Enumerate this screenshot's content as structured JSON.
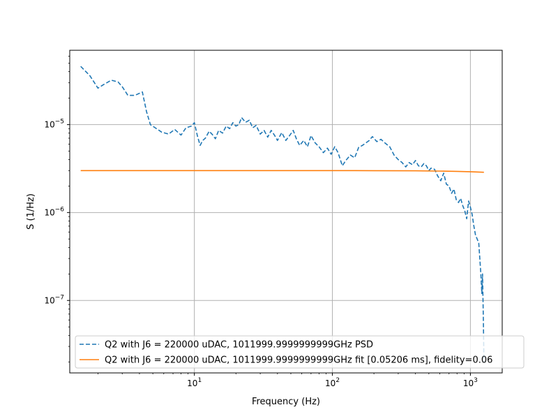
{
  "chart_data": {
    "type": "line",
    "title": "",
    "xlabel": "Frequency (Hz)",
    "ylabel": "S (1/Hz)",
    "xscale": "log",
    "yscale": "log",
    "xlim": [
      1.25,
      1700
    ],
    "ylim": [
      1.5e-08,
      7e-05
    ],
    "grid": true,
    "legend_position": "lower-left",
    "x_ticks": [
      {
        "value": 10,
        "label_base": "10",
        "label_exp": "1"
      },
      {
        "value": 100,
        "label_base": "10",
        "label_exp": "2"
      },
      {
        "value": 1000,
        "label_base": "10",
        "label_exp": "3"
      }
    ],
    "y_ticks": [
      {
        "value": 1e-07,
        "label_base": "10",
        "label_exp": "−7"
      },
      {
        "value": 1e-06,
        "label_base": "10",
        "label_exp": "−6"
      },
      {
        "value": 1e-05,
        "label_base": "10",
        "label_exp": "−5"
      }
    ],
    "series": [
      {
        "name": "Q2 with J6 = 220000 uDAC, 1011999.9999999999GHz PSD",
        "color": "#1f77b4",
        "style": "dashed",
        "x": [
          1.5,
          1.75,
          2.0,
          2.2,
          2.5,
          2.8,
          3.0,
          3.3,
          3.7,
          4.2,
          4.5,
          4.8,
          5.2,
          5.8,
          6.5,
          7.2,
          8.0,
          8.7,
          9.5,
          10.0,
          10.5,
          11.0,
          11.5,
          12.0,
          12.8,
          13.5,
          14.2,
          15.0,
          16.0,
          17.0,
          18.0,
          19.0,
          20.0,
          21.0,
          22.0,
          23.5,
          25.0,
          26.5,
          28.0,
          30.0,
          32.0,
          34.0,
          36.0,
          38.0,
          40.0,
          43.0,
          46.0,
          49.0,
          52.0,
          55.0,
          58.0,
          62.0,
          66.0,
          70.0,
          75.0,
          80.0,
          86.0,
          92.0,
          98.0,
          104.0,
          110.0,
          118.0,
          125.0,
          135.0,
          145.0,
          155.0,
          165.0,
          175.0,
          185.0,
          195.0,
          210.0,
          225.0,
          240.0,
          260.0,
          280.0,
          300.0,
          320.0,
          340.0,
          360.0,
          380.0,
          400.0,
          420.0,
          440.0,
          460.0,
          480.0,
          500.0,
          520.0,
          550.0,
          580.0,
          610.0,
          640.0,
          670.0,
          700.0,
          730.0,
          760.0,
          790.0,
          820.0,
          850.0,
          880.0,
          910.0,
          940.0,
          970.0,
          1000.0,
          1030.0,
          1060.0,
          1090.0,
          1120.0,
          1150.0,
          1170.0,
          1190.0,
          1210.0,
          1225.0,
          1235.0,
          1242.0,
          1248.0,
          1253.0
        ],
        "y": [
          4.6e-05,
          3.6e-05,
          2.6e-05,
          2.85e-05,
          3.2e-05,
          3.05e-05,
          2.7e-05,
          2.15e-05,
          2.15e-05,
          2.35e-05,
          1.4e-05,
          1e-05,
          9.2e-06,
          8.2e-06,
          7.8e-06,
          8.8e-06,
          7.6e-06,
          9.2e-06,
          9.6e-06,
          1.05e-05,
          7.5e-06,
          5.8e-06,
          6.6e-06,
          7e-06,
          8.4e-06,
          7.7e-06,
          6.9e-06,
          8.6e-06,
          8e-06,
          9.6e-06,
          9e-06,
          1.05e-05,
          9.6e-06,
          1e-05,
          1.2e-05,
          1.06e-05,
          1.12e-05,
          9.2e-06,
          9.8e-06,
          7.8e-06,
          8.6e-06,
          7.2e-06,
          8.6e-06,
          7.6e-06,
          6.6e-06,
          8.1e-06,
          6.6e-06,
          7.5e-06,
          8.6e-06,
          6.8e-06,
          5.8e-06,
          6.6e-06,
          5.6e-06,
          7.5e-06,
          6.2e-06,
          5.6e-06,
          4.8e-06,
          5.4e-06,
          4.6e-06,
          5.6e-06,
          4.8e-06,
          3.4e-06,
          3.9e-06,
          4.5e-06,
          4.2e-06,
          5.5e-06,
          5.8e-06,
          6.2e-06,
          6.6e-06,
          7.3e-06,
          6.4e-06,
          6.8e-06,
          6.2e-06,
          5.6e-06,
          4.5e-06,
          4e-06,
          3.7e-06,
          3.3e-06,
          3.7e-06,
          3.5e-06,
          3.9e-06,
          3.4e-06,
          3.3e-06,
          3.6e-06,
          3.4e-06,
          3e-06,
          3.2e-06,
          3.1e-06,
          2.6e-06,
          2.3e-06,
          2.8e-06,
          2.1e-06,
          2e-06,
          1.65e-06,
          1.85e-06,
          1.4e-06,
          1.3e-06,
          1.45e-06,
          1.2e-06,
          1.05e-06,
          8.5e-07,
          1.35e-06,
          1.15e-06,
          9.5e-07,
          7e-07,
          5.5e-07,
          5e-07,
          4.5e-07,
          3e-07,
          2e-07,
          1.2e-07,
          2e-07,
          1e-07,
          6e-08,
          3.5e-08,
          2e-08
        ]
      },
      {
        "name": "Q2 with J6 = 220000 uDAC, 1011999.9999999999GHz fit [0.05206 ms], fidelity=0.06",
        "color": "#ff7f0e",
        "style": "solid",
        "x": [
          1.5,
          2,
          3,
          5,
          10,
          20,
          50,
          100,
          200,
          400,
          600,
          800,
          1000,
          1253
        ],
        "y": [
          3e-06,
          3e-06,
          3e-06,
          3e-06,
          3e-06,
          3e-06,
          3e-06,
          3e-06,
          2.99e-06,
          2.98e-06,
          2.96e-06,
          2.94e-06,
          2.91e-06,
          2.87e-06
        ]
      }
    ]
  }
}
